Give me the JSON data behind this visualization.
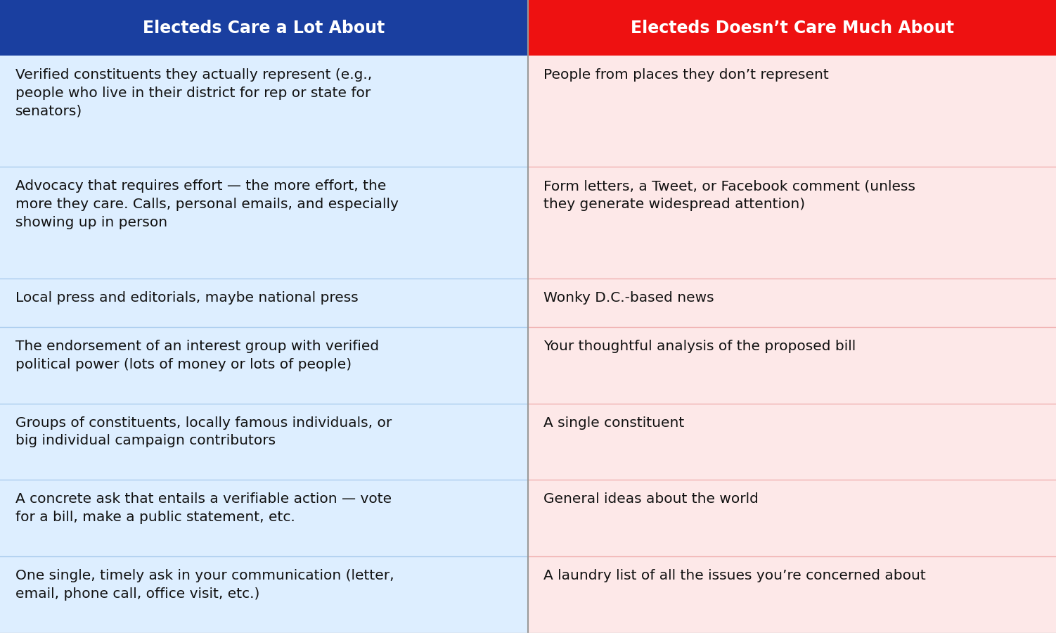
{
  "col1_header": "Electeds Care a Lot About",
  "col2_header": "Electeds Doesn’t Care Much About",
  "col1_header_bg": "#1a3fa0",
  "col2_header_bg": "#ee1111",
  "header_text_color": "#ffffff",
  "col1_row_bg": "#ddeeff",
  "col2_row_bg": "#fde8e8",
  "divider_color": "#aaccee",
  "divider_color2": "#f0b0b0",
  "text_color": "#111111",
  "col1_rows": [
    "Verified constituents they actually represent (e.g.,\npeople who live in their district for rep or state for\nsenators)",
    "Advocacy that requires effort — the more effort, the\nmore they care. Calls, personal emails, and especially\nshowing up in person",
    "Local press and editorials, maybe national press",
    "The endorsement of an interest group with verified\npolitical power (lots of money or lots of people)",
    "Groups of constituents, locally famous individuals, or\nbig individual campaign contributors",
    "A concrete ask that entails a verifiable action — vote\nfor a bill, make a public statement, etc.",
    "One single, timely ask in your communication (letter,\nemail, phone call, office visit, etc.)"
  ],
  "col2_rows": [
    "People from places they don’t represent",
    "Form letters, a Tweet, or Facebook comment (unless\nthey generate widespread attention)",
    "Wonky D.C.-based news",
    "Your thoughtful analysis of the proposed bill",
    "A single constituent",
    "General ideas about the world",
    "A laundry list of all the issues you’re concerned about"
  ],
  "fig_width": 15.02,
  "fig_height": 9.0,
  "header_fontsize": 17,
  "cell_fontsize": 14.5,
  "row_weights": [
    3.2,
    3.2,
    1.4,
    2.2,
    2.2,
    2.2,
    2.2
  ]
}
